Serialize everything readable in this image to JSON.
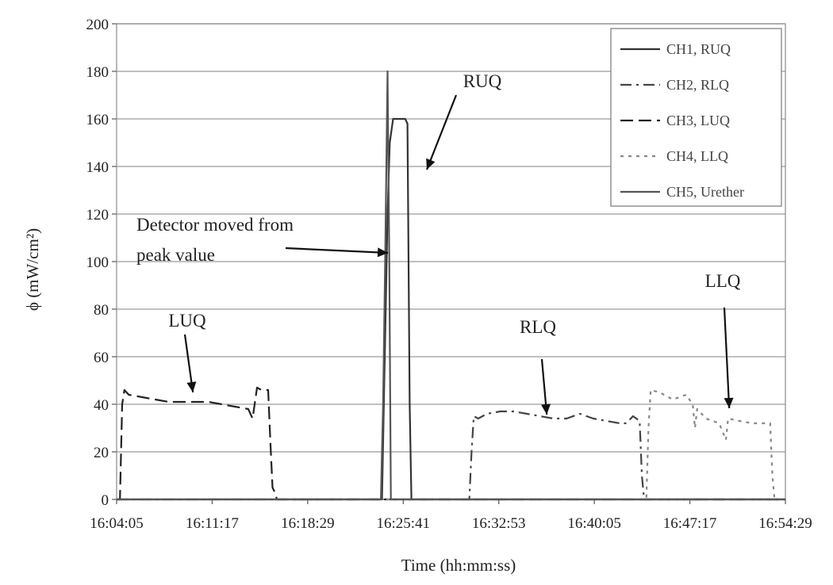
{
  "chart_data": {
    "type": "line",
    "xlabel": "Time (hh:mm:ss)",
    "ylabel": "ϕ (mW/cm²)",
    "ylim": [
      0,
      200
    ],
    "yticks": [
      0,
      20,
      40,
      60,
      80,
      100,
      120,
      140,
      160,
      180,
      200
    ],
    "xlim": [
      "16:04:05",
      "16:54:29"
    ],
    "xticks": [
      "16:04:05",
      "16:11:17",
      "16:18:29",
      "16:25:41",
      "16:32:53",
      "16:40:05",
      "16:47:17",
      "16:54:29"
    ],
    "grid": "horizontal",
    "legend_position": "top-right",
    "series": [
      {
        "name": "CH1, RUQ",
        "color": "#333333",
        "style": "solid",
        "points": [
          [
            "16:04:05",
            0
          ],
          [
            "16:23:50",
            0
          ],
          [
            "16:24:05",
            0
          ],
          [
            "16:24:30",
            120
          ],
          [
            "16:24:40",
            150
          ],
          [
            "16:24:55",
            160
          ],
          [
            "16:25:05",
            160
          ],
          [
            "16:25:50",
            160
          ],
          [
            "16:26:00",
            158
          ],
          [
            "16:26:10",
            40
          ],
          [
            "16:26:18",
            0
          ],
          [
            "16:54:29",
            0
          ]
        ]
      },
      {
        "name": "CH2, RLQ",
        "color": "#444444",
        "style": "dash-dot",
        "points": [
          [
            "16:04:05",
            0
          ],
          [
            "16:30:40",
            0
          ],
          [
            "16:30:50",
            20
          ],
          [
            "16:31:00",
            35
          ],
          [
            "16:31:20",
            34
          ],
          [
            "16:32:00",
            36
          ],
          [
            "16:33:00",
            37
          ],
          [
            "16:34:00",
            37
          ],
          [
            "16:35:00",
            36
          ],
          [
            "16:36:00",
            35
          ],
          [
            "16:37:00",
            34
          ],
          [
            "16:38:00",
            34
          ],
          [
            "16:39:00",
            36
          ],
          [
            "16:40:00",
            34
          ],
          [
            "16:41:00",
            33
          ],
          [
            "16:42:00",
            32
          ],
          [
            "16:42:30",
            32
          ],
          [
            "16:43:00",
            35
          ],
          [
            "16:43:30",
            33
          ],
          [
            "16:43:40",
            10
          ],
          [
            "16:43:50",
            0
          ],
          [
            "16:54:29",
            0
          ]
        ]
      },
      {
        "name": "CH3, LUQ",
        "color": "#222222",
        "style": "dashed",
        "points": [
          [
            "16:04:05",
            0
          ],
          [
            "16:04:20",
            0
          ],
          [
            "16:04:30",
            40
          ],
          [
            "16:04:40",
            46
          ],
          [
            "16:05:00",
            44
          ],
          [
            "16:06:00",
            43
          ],
          [
            "16:07:00",
            42
          ],
          [
            "16:08:00",
            41
          ],
          [
            "16:09:00",
            41
          ],
          [
            "16:10:00",
            41
          ],
          [
            "16:11:00",
            41
          ],
          [
            "16:12:00",
            40
          ],
          [
            "16:13:00",
            39
          ],
          [
            "16:14:00",
            38
          ],
          [
            "16:14:20",
            34
          ],
          [
            "16:14:40",
            47
          ],
          [
            "16:15:00",
            46
          ],
          [
            "16:15:30",
            46
          ],
          [
            "16:15:40",
            25
          ],
          [
            "16:15:50",
            5
          ],
          [
            "16:16:00",
            3
          ],
          [
            "16:16:10",
            0
          ],
          [
            "16:54:29",
            0
          ]
        ]
      },
      {
        "name": "CH4, LLQ",
        "color": "#888888",
        "style": "dotted",
        "points": [
          [
            "16:04:05",
            0
          ],
          [
            "16:44:00",
            0
          ],
          [
            "16:44:10",
            30
          ],
          [
            "16:44:20",
            46
          ],
          [
            "16:45:00",
            45
          ],
          [
            "16:46:00",
            42
          ],
          [
            "16:47:00",
            44
          ],
          [
            "16:47:30",
            40
          ],
          [
            "16:47:40",
            30
          ],
          [
            "16:47:50",
            38
          ],
          [
            "16:48:30",
            34
          ],
          [
            "16:49:30",
            32
          ],
          [
            "16:50:00",
            25
          ],
          [
            "16:50:10",
            34
          ],
          [
            "16:51:00",
            33
          ],
          [
            "16:52:00",
            32
          ],
          [
            "16:53:00",
            32
          ],
          [
            "16:53:20",
            32
          ],
          [
            "16:53:30",
            10
          ],
          [
            "16:53:40",
            0
          ],
          [
            "16:54:29",
            0
          ]
        ]
      },
      {
        "name": "CH5, Urether",
        "color": "#555555",
        "style": "solid",
        "points": [
          [
            "16:04:05",
            0
          ],
          [
            "16:24:00",
            0
          ],
          [
            "16:24:10",
            40
          ],
          [
            "16:24:20",
            105
          ],
          [
            "16:24:30",
            180
          ],
          [
            "16:24:38",
            100
          ],
          [
            "16:24:45",
            0
          ],
          [
            "16:54:29",
            0
          ]
        ]
      }
    ],
    "annotations": [
      {
        "id": "luq",
        "text": "LUQ",
        "x": "16:09:50",
        "y": 43
      },
      {
        "id": "ruq",
        "text": "RUQ",
        "x": "16:25:40",
        "y": 148
      },
      {
        "id": "detector-line1",
        "text": "Detector moved from",
        "x": "16:24:25",
        "y": 106
      },
      {
        "id": "detector-line2",
        "text": "peak value",
        "x": "16:24:25",
        "y": 106
      },
      {
        "id": "rlq",
        "text": "RLQ",
        "x": "16:36:30",
        "y": 37
      },
      {
        "id": "llq",
        "text": "LLQ",
        "x": "16:50:15",
        "y": 40
      }
    ]
  }
}
